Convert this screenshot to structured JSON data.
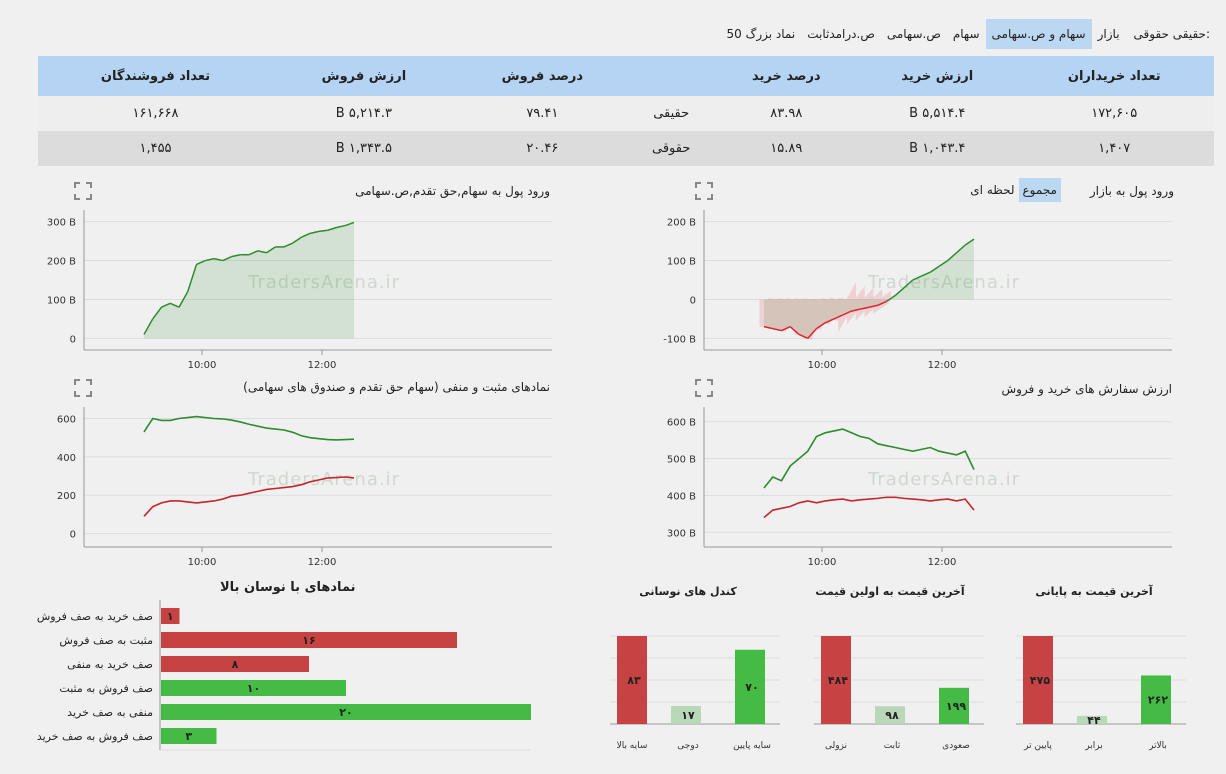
{
  "tabs": {
    "lead": "حقیقی حقوقی:",
    "items": [
      "بازار",
      "سهام و ص.سهامی",
      "سهام",
      "ص.سهامی",
      "ص.درامدثابت",
      "50 نماد بزرگ"
    ],
    "active": 1
  },
  "summary": {
    "headers": [
      "تعداد خریداران",
      "ارزش خرید",
      "درصد خرید",
      "",
      "درصد فروش",
      "ارزش فروش",
      "تعداد فروشندگان"
    ],
    "rows": [
      [
        "۱۷۲,۶۰۵",
        "۵,۵۱۴.۴ B",
        "۸۳.۹۸",
        "حقیقی",
        "۷۹.۴۱",
        "۵,۲۱۴.۳ B",
        "۱۶۱,۶۶۸"
      ],
      [
        "۱,۴۰۷",
        "۱,۰۴۳.۴ B",
        "۱۵.۸۹",
        "حقوقی",
        "۲۰.۴۶",
        "۱,۳۴۳.۵ B",
        "۱,۴۵۵"
      ]
    ]
  },
  "watermark": "TradersArena.ir",
  "panels": {
    "market_flow": {
      "title": "ورود پول به بازار",
      "ctl_cumulative": "مجموع",
      "ctl_instant": "لحظه ای"
    },
    "stock_flow": {
      "title": "ورود پول به سهام,حق تقدم,ص.سهامی"
    },
    "orders": {
      "title": "ارزش سفارش های خرید و فروش"
    },
    "posneg": {
      "title": "نمادهای مثبت و منفی (سهام حق تقدم و صندوق های سهامی)"
    },
    "volatile": {
      "title": "نمادهای با نوسان بالا"
    },
    "last_close": {
      "title": "آخرین قیمت به پایانی"
    },
    "last_first": {
      "title": "آخرین قیمت به اولین قیمت"
    },
    "candles": {
      "title": "کندل های نوسانی"
    }
  },
  "chart_data": [
    {
      "id": "market_flow",
      "type": "area",
      "title": "ورود پول به بازار",
      "x_ticks": [
        "10:00",
        "12:00"
      ],
      "y_ticks": [
        "200 B",
        "100 B",
        "0",
        "-100 B"
      ],
      "ylim": [
        -130,
        230
      ],
      "series": [
        {
          "values": [
            -70,
            -75,
            -80,
            -70,
            -90,
            -100,
            -75,
            -60,
            -50,
            -40,
            -30,
            -25,
            -20,
            -15,
            -5,
            10,
            30,
            50,
            60,
            70,
            85,
            100,
            120,
            140,
            155
          ]
        }
      ],
      "colors": {
        "pos": "#2e8b2e",
        "neg": "#e0242f"
      }
    },
    {
      "id": "stock_flow",
      "type": "area",
      "title": "ورود پول به سهام,حق تقدم,ص.سهامی",
      "x_ticks": [
        "10:00",
        "12:00"
      ],
      "y_ticks": [
        "300 B",
        "200 B",
        "100 B",
        "0"
      ],
      "ylim": [
        -30,
        330
      ],
      "series": [
        {
          "values": [
            10,
            50,
            80,
            90,
            80,
            120,
            190,
            200,
            205,
            200,
            210,
            215,
            215,
            225,
            220,
            235,
            235,
            245,
            260,
            270,
            275,
            278,
            285,
            290,
            298
          ]
        }
      ],
      "colors": {
        "pos": "#2e8b2e"
      }
    },
    {
      "id": "orders",
      "type": "line",
      "title": "ارزش سفارش های خرید و فروش",
      "x_ticks": [
        "10:00",
        "12:00"
      ],
      "y_ticks": [
        "600 B",
        "500 B",
        "400 B",
        "300 B"
      ],
      "ylim": [
        260,
        640
      ],
      "series": [
        {
          "values": [
            420,
            450,
            440,
            480,
            500,
            520,
            560,
            570,
            575,
            580,
            570,
            560,
            555,
            540,
            535,
            530,
            525,
            520,
            525,
            530,
            520,
            515,
            510,
            520,
            470
          ],
          "color": "#2e8b2e"
        },
        {
          "values": [
            340,
            360,
            365,
            370,
            380,
            385,
            380,
            385,
            388,
            390,
            385,
            388,
            390,
            392,
            395,
            395,
            392,
            390,
            388,
            385,
            388,
            390,
            385,
            390,
            360
          ],
          "color": "#c0282d"
        }
      ]
    },
    {
      "id": "posneg",
      "type": "line",
      "title": "نمادهای مثبت و منفی (سهام حق تقدم و صندوق های سهامی)",
      "x_ticks": [
        "10:00",
        "12:00"
      ],
      "y_ticks": [
        "600",
        "400",
        "200",
        "0"
      ],
      "ylim": [
        -70,
        660
      ],
      "series": [
        {
          "values": [
            530,
            600,
            590,
            590,
            600,
            605,
            610,
            605,
            600,
            598,
            592,
            582,
            570,
            560,
            550,
            545,
            540,
            528,
            510,
            500,
            495,
            490,
            488,
            490,
            492
          ],
          "color": "#2e8b2e"
        },
        {
          "values": [
            90,
            140,
            160,
            170,
            170,
            165,
            160,
            165,
            170,
            180,
            195,
            200,
            210,
            220,
            230,
            235,
            240,
            245,
            255,
            270,
            280,
            290,
            292,
            295,
            290
          ],
          "color": "#c0282d"
        }
      ]
    },
    {
      "id": "volatile",
      "type": "bar",
      "orientation": "horizontal",
      "title": "نمادهای با نوسان بالا",
      "categories": [
        "صف خرید به صف فروش",
        "مثبت به صف فروش",
        "صف خرید به منفی",
        "صف فروش به مثبت",
        "منفی به صف خرید",
        "صف فروش به صف خرید"
      ],
      "values": [
        1,
        16,
        8,
        10,
        20,
        3
      ],
      "labels": [
        "۱",
        "۱۶",
        "۸",
        "۱۰",
        "۲۰",
        "۳"
      ],
      "colors": [
        "#c74343",
        "#c74343",
        "#c74343",
        "#44bb44",
        "#44bb44",
        "#44bb44"
      ],
      "xlim": [
        0,
        20
      ]
    },
    {
      "id": "last_close",
      "type": "bar",
      "title": "آخرین قیمت به پایانی",
      "categories": [
        "پایین تر",
        "برابر",
        "بالاتر"
      ],
      "values": [
        475,
        44,
        262
      ],
      "labels": [
        "۴۷۵",
        "۴۴",
        "۲۶۲"
      ],
      "colors": [
        "#c74343",
        "#b9d8b9",
        "#44bb44"
      ],
      "ylim": [
        0,
        475
      ]
    },
    {
      "id": "last_first",
      "type": "bar",
      "title": "آخرین قیمت به اولین قیمت",
      "categories": [
        "نزولی",
        "ثابت",
        "صعودی"
      ],
      "values": [
        484,
        98,
        199
      ],
      "labels": [
        "۴۸۴",
        "۹۸",
        "۱۹۹"
      ],
      "colors": [
        "#c74343",
        "#b9d8b9",
        "#44bb44"
      ],
      "ylim": [
        0,
        484
      ]
    },
    {
      "id": "candles",
      "type": "bar",
      "title": "کندل های نوسانی",
      "categories": [
        "سایه بالا",
        "دوجی",
        "سایه پایین"
      ],
      "values": [
        83,
        17,
        70
      ],
      "labels": [
        "۸۳",
        "۱۷",
        "۷۰"
      ],
      "colors": [
        "#c74343",
        "#b9d8b9",
        "#44bb44"
      ],
      "ylim": [
        0,
        83
      ]
    }
  ]
}
